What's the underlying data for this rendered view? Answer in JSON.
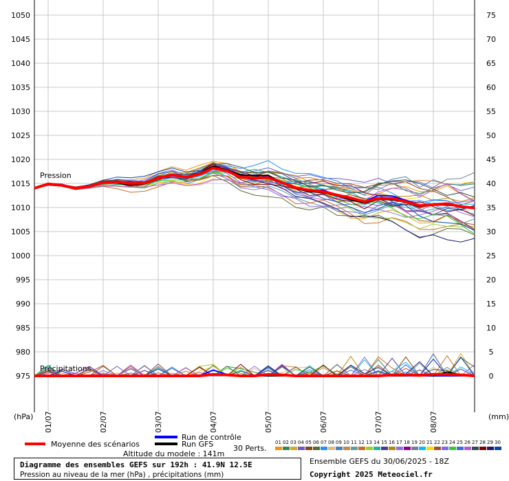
{
  "chart_data": {
    "type": "line",
    "title": "Diagramme des ensembles GEFS sur 192h : 41.9N 12.5E",
    "subtitle": "Pression au niveau de la mer (hPa) , précipitations (mm)",
    "left_axis": {
      "unit": "(hPa)",
      "ticks": [
        975,
        980,
        985,
        990,
        995,
        1000,
        1005,
        1010,
        1015,
        1020,
        1025,
        1030,
        1035,
        1040,
        1045,
        1050
      ],
      "range": [
        970,
        1052
      ]
    },
    "right_axis": {
      "unit": "(mm)",
      "ticks": [
        0,
        5,
        10,
        15,
        20,
        25,
        30,
        35,
        40,
        45,
        50,
        55,
        60,
        65,
        70,
        75
      ]
    },
    "x_axis": {
      "hours_range": [
        0,
        192
      ],
      "tick_labels": [
        "01/07",
        "02/07",
        "03/07",
        "04/07",
        "05/07",
        "06/07",
        "07/07",
        "08/07"
      ],
      "tick_hours": [
        6,
        30,
        54,
        78,
        102,
        126,
        150,
        174
      ]
    },
    "grid": true,
    "pressure_label": "Pression",
    "precip_label": "Précipitations",
    "x_hours": [
      0,
      6,
      12,
      18,
      24,
      30,
      36,
      42,
      48,
      54,
      60,
      66,
      72,
      78,
      84,
      90,
      96,
      102,
      108,
      114,
      120,
      126,
      132,
      138,
      144,
      150,
      156,
      162,
      168,
      174,
      180,
      186,
      192
    ],
    "pressure_series": [
      {
        "name": "Moyenne des scénarios",
        "color": "#ff0000",
        "values": [
          1014,
          1014.9,
          1014.6,
          1014,
          1014.4,
          1015.2,
          1015.3,
          1015,
          1015.1,
          1016.1,
          1016.8,
          1016.3,
          1016.9,
          1018.2,
          1017.6,
          1016.3,
          1016.1,
          1016.2,
          1015.2,
          1014.1,
          1013.6,
          1013.3,
          1012.6,
          1012,
          1011.2,
          1011.9,
          1011.9,
          1011.2,
          1010.4,
          1010.6,
          1010.8,
          1010.2,
          1009.9
        ]
      },
      {
        "name": "Run de contrôle",
        "color": "#0000ff",
        "values": [
          1014,
          1015,
          1014.8,
          1014,
          1014.4,
          1015.2,
          1015.3,
          1015,
          1015.1,
          1016.2,
          1016.7,
          1016.4,
          1016.9,
          1018.3,
          1017.6,
          1016.3,
          1016.2,
          1016.4,
          1015.3,
          1014.2,
          1013.6,
          1013.6,
          1012.6,
          1011.9,
          1011.3,
          1012.5,
          1012.4,
          1011.5,
          1010.5,
          1010.5,
          1010.6,
          1010.3,
          1010
        ]
      },
      {
        "name": "Run GFS",
        "color": "#000000",
        "values": [
          1014,
          1014.7,
          1014.5,
          1013.8,
          1014.3,
          1015.3,
          1015.1,
          1014.6,
          1014.9,
          1016.1,
          1016.8,
          1016.2,
          1017.1,
          1018.6,
          1017.8,
          1016.8,
          1016.6,
          1016.7,
          1015.1,
          1013.9,
          1013.3,
          1013.1,
          1012.4,
          1011.6,
          1010.9,
          1011.7,
          1011.6,
          1011.1,
          1010.1,
          1010.6,
          1010.5,
          1010.3,
          1009.8
        ]
      }
    ],
    "precip_series": [
      {
        "name": "Moyenne des scénarios",
        "color": "#ff0000",
        "values": [
          0,
          0,
          0,
          0,
          0,
          0,
          0,
          0,
          0,
          0,
          0,
          0,
          0,
          0.3,
          0.2,
          0,
          0,
          0.3,
          0.2,
          0,
          0,
          0,
          0,
          0,
          0,
          0,
          0.2,
          0.2,
          0.1,
          0.3,
          0.3,
          0.2,
          0
        ]
      },
      {
        "name": "Run de contrôle",
        "color": "#0000ff",
        "values": [
          0,
          0,
          0,
          0,
          0,
          0,
          0,
          0,
          0,
          0,
          0,
          0,
          0,
          1.2,
          0.3,
          0,
          0,
          0.3,
          0,
          0,
          0,
          0,
          0,
          0,
          0,
          0,
          0,
          0,
          0,
          0,
          0,
          0,
          0
        ]
      },
      {
        "name": "Run GFS",
        "color": "#000000",
        "values": [
          0,
          0,
          0,
          0,
          0,
          0,
          0,
          0,
          0,
          0,
          0,
          0,
          0,
          0.3,
          0.1,
          0,
          0,
          0,
          0,
          0,
          0,
          0,
          0,
          0,
          0,
          0,
          0,
          0,
          0.3,
          0,
          0.8,
          0.2,
          0
        ]
      }
    ],
    "perturbation_colors": [
      "#ff8c00",
      "#2e8b57",
      "#daa520",
      "#6a5acd",
      "#8b4513",
      "#556b2f",
      "#1e90ff",
      "#deb887",
      "#4682b4",
      "#cd853f",
      "#5f9ea0",
      "#d2691e",
      "#9acd32",
      "#20b2aa",
      "#483d8b",
      "#b8860b",
      "#9370db",
      "#8b008b",
      "#708090",
      "#00bfff",
      "#ffd700",
      "#a0522d",
      "#7b68ee",
      "#32cd32",
      "#4169e1",
      "#ba55d3",
      "#2f4f4f",
      "#800000",
      "#191970",
      "#0047ab"
    ],
    "perturbation_seed": 12345
  },
  "legend": {
    "mean_label": "Moyenne des scénarios",
    "control_label": "Run de contrôle",
    "gfs_label": "Run GFS",
    "perts_label": "30 Perts.",
    "pert_numbers": [
      "01",
      "02",
      "03",
      "04",
      "05",
      "06",
      "07",
      "08",
      "09",
      "10",
      "11",
      "12",
      "13",
      "14",
      "15",
      "16",
      "17",
      "18",
      "19",
      "20",
      "21",
      "22",
      "23",
      "24",
      "25",
      "26",
      "27",
      "28",
      "29",
      "30"
    ],
    "altitude": "Altitude du modele : 141m"
  },
  "footer": {
    "title": "Diagramme des ensembles GEFS sur 192h : 41.9N 12.5E",
    "subtitle": "Pression au niveau de la mer (hPa) , précipitations (mm)",
    "run": "Ensemble GEFS du 30/06/2025 - 18Z",
    "copyright": "Copyright 2025 Meteociel.fr"
  }
}
